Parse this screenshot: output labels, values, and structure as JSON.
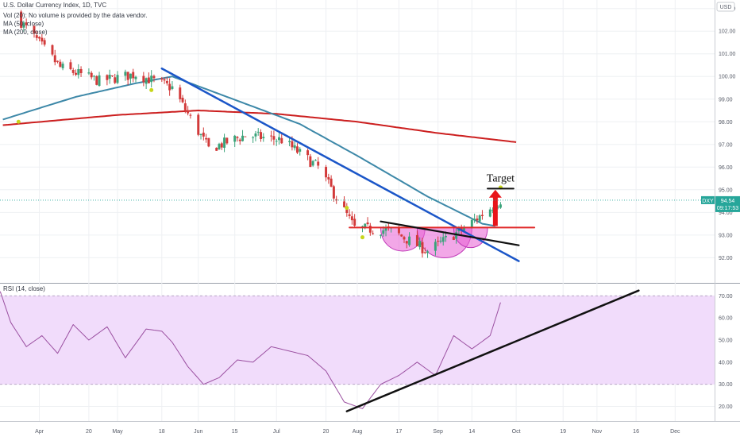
{
  "header": {
    "title": "U.S. Dollar Currency Index, 1D, TVC",
    "currency": "USD"
  },
  "legend": [
    "Vol (20): No volume is provided by the data vendor.",
    "MA (50, close)",
    "MA (200, close)"
  ],
  "price_tag": {
    "symbol": "DXY",
    "price": "94.54",
    "countdown": "09:17:53"
  },
  "annotations": {
    "target_label": "Target"
  },
  "colors": {
    "up": "#3aa37a",
    "down": "#d23a3a",
    "ma50": "#3d88a8",
    "ma200": "#cc1f1f",
    "downtrend": "#1b56c8",
    "neckline": "#e02828",
    "pattern_fill": "#e85fd3",
    "rsi_line": "#9a4fa0",
    "rsi_band": "#f1dcfb",
    "price_tag": "#26a69a",
    "marker": "#c7d61a"
  },
  "chart_data": [
    {
      "type": "candlestick",
      "title": "U.S. Dollar Currency Index, 1D, TVC",
      "ylim": [
        91.1,
        103.2
      ],
      "yticks": [
        "92.00",
        "93.00",
        "94.00",
        "95.00",
        "96.00",
        "97.00",
        "98.00",
        "99.00",
        "100.00",
        "101.00",
        "102.00",
        "103.00"
      ],
      "x_ticks": [
        "Apr",
        "20",
        "May",
        "18",
        "Jun",
        "15",
        "Jul",
        "20",
        "Aug",
        "17",
        "Sep",
        "14",
        "Oct",
        "19",
        "Nov",
        "16",
        "Dec"
      ],
      "anchors": {
        "date": [
          "2020-03-25",
          "2020-04-09",
          "2020-04-24",
          "2020-05-08",
          "2020-05-22",
          "2020-06-05",
          "2020-06-19",
          "2020-07-03",
          "2020-07-17",
          "2020-07-31",
          "2020-08-14",
          "2020-08-28",
          "2020-09-11",
          "2020-09-25"
        ],
        "close": [
          102.4,
          100.4,
          99.8,
          100.1,
          99.5,
          96.8,
          97.4,
          97.2,
          96.0,
          93.3,
          93.2,
          92.3,
          93.3,
          94.54
        ]
      },
      "ma50": {
        "date": [
          "2020-03-18",
          "2020-04-15",
          "2020-05-08",
          "2020-05-22",
          "2020-06-19",
          "2020-07-10",
          "2020-08-01",
          "2020-08-28",
          "2020-09-18",
          "2020-09-23"
        ],
        "value": [
          98.1,
          99.1,
          99.7,
          100.0,
          98.8,
          97.9,
          96.5,
          94.7,
          93.5,
          93.4
        ]
      },
      "ma200": {
        "date": [
          "2020-03-18",
          "2020-05-01",
          "2020-06-01",
          "2020-07-01",
          "2020-08-01",
          "2020-09-01",
          "2020-10-01"
        ],
        "value": [
          97.85,
          98.3,
          98.5,
          98.35,
          98.0,
          97.5,
          97.1
        ]
      },
      "downtrend_line": {
        "date": [
          "2020-05-18",
          "2020-10-02"
        ],
        "value": [
          100.35,
          91.85
        ]
      },
      "neckline": {
        "date": [
          "2020-07-29",
          "2020-10-08"
        ],
        "value": [
          93.33,
          93.33
        ]
      },
      "resistance_line": {
        "date": [
          "2020-08-10",
          "2020-10-02"
        ],
        "value": [
          93.6,
          92.55
        ]
      },
      "target_line": {
        "date": [
          "2020-09-20",
          "2020-09-30"
        ],
        "value": [
          95.05,
          95.05
        ]
      },
      "target_arrow": {
        "date": "2020-09-23",
        "from": 93.4,
        "to": 95.0
      },
      "pattern_humps": [
        {
          "start": "2020-08-10",
          "end": "2020-08-27",
          "depth": 92.3
        },
        {
          "start": "2020-08-24",
          "end": "2020-09-14",
          "depth": 91.9
        },
        {
          "start": "2020-09-07",
          "end": "2020-09-20",
          "depth": 92.5
        }
      ],
      "markers": [
        {
          "date": "2020-03-24",
          "value": 98.0
        },
        {
          "date": "2020-05-14",
          "value": 99.4
        },
        {
          "date": "2020-07-28",
          "value": 94.2
        },
        {
          "date": "2020-08-03",
          "value": 92.9
        },
        {
          "date": "2020-09-25",
          "value": 95.1
        }
      ]
    },
    {
      "type": "line",
      "title": "RSI (14, close)",
      "ylim": [
        15.5,
        73
      ],
      "yticks": [
        "20.00",
        "30.00",
        "40.00",
        "50.00",
        "60.00",
        "70.00"
      ],
      "band": [
        30,
        70
      ],
      "rsi": {
        "date": [
          "2020-03-17",
          "2020-03-21",
          "2020-03-27",
          "2020-04-02",
          "2020-04-08",
          "2020-04-14",
          "2020-04-20",
          "2020-04-27",
          "2020-05-04",
          "2020-05-12",
          "2020-05-18",
          "2020-05-22",
          "2020-05-28",
          "2020-06-03",
          "2020-06-09",
          "2020-06-16",
          "2020-06-22",
          "2020-06-29",
          "2020-07-06",
          "2020-07-13",
          "2020-07-20",
          "2020-07-27",
          "2020-08-03",
          "2020-08-10",
          "2020-08-17",
          "2020-08-24",
          "2020-08-31",
          "2020-09-07",
          "2020-09-14",
          "2020-09-21",
          "2020-09-25"
        ],
        "value": [
          72,
          58,
          47,
          52,
          44,
          57,
          50,
          56,
          42,
          55,
          54,
          49,
          38,
          30,
          33,
          41,
          40,
          47,
          45,
          43,
          36,
          22,
          19,
          30,
          34,
          40,
          34,
          52,
          46,
          52,
          67
        ]
      },
      "trendline": {
        "date": [
          "2020-07-28",
          "2020-11-17"
        ],
        "value": [
          17.8,
          72.4
        ]
      }
    }
  ]
}
